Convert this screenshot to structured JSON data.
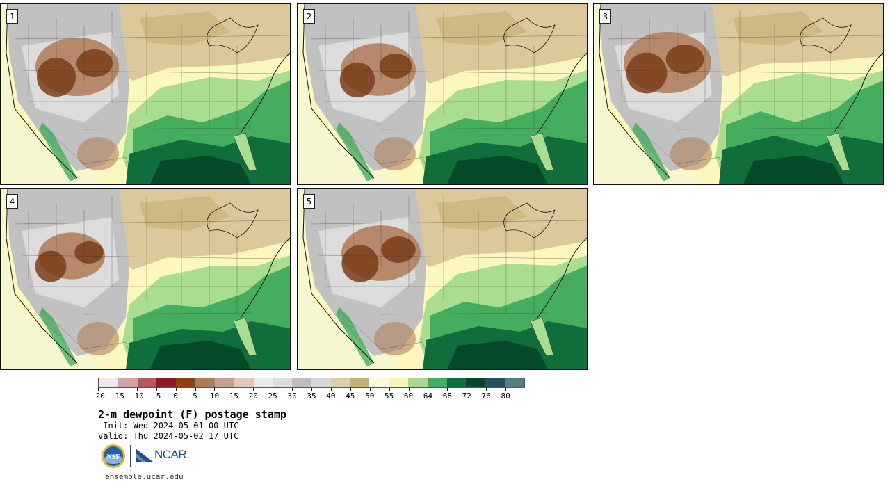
{
  "panels": [
    {
      "label": "1"
    },
    {
      "label": "2"
    },
    {
      "label": "3"
    },
    {
      "label": "4"
    },
    {
      "label": "5"
    }
  ],
  "map_colors": {
    "ocean_far": "#f6f6cf",
    "light_yellow": "#fbf7bf",
    "light_green": "#a9de91",
    "green": "#45ad5e",
    "dark_green": "#0f6e3b",
    "darkest_green": "#044a28",
    "tan": "#dcc99b",
    "dark_tan": "#c8b27a",
    "gray": "#c1c1c1",
    "light_gray": "#e2e2e2",
    "pink_brown": "#b0805c",
    "brown": "#7a3e1a",
    "border": "#3a3a3a"
  },
  "colorbar": {
    "colors": [
      "#f2e6e8",
      "#d6a0a4",
      "#b25a5e",
      "#8b1a22",
      "#8a4312",
      "#b07b58",
      "#c8a08a",
      "#e2c8b8",
      "#ececec",
      "#dcdcdc",
      "#bdbdbd",
      "#d8d8d8",
      "#dccfa6",
      "#c9ae76",
      "#fbfbe0",
      "#f7f6b0",
      "#a7dc8f",
      "#47ad5d",
      "#0e703c",
      "#04472a",
      "#1f5163",
      "#557e83"
    ],
    "tick_labels": [
      "−20",
      "−15",
      "−10",
      "−5",
      "0",
      "5",
      "10",
      "15",
      "20",
      "25",
      "30",
      "35",
      "40",
      "45",
      "50",
      "55",
      "60",
      "64",
      "68",
      "72",
      "76",
      "80"
    ]
  },
  "title": "2-m dewpoint (F) postage stamp",
  "init_line": " Init: Wed 2024-05-01 00 UTC",
  "valid_line": "Valid: Thu 2024-05-02 17 UTC",
  "logos": {
    "nsf_text": "NSF",
    "ncar_text": "NCAR"
  },
  "site": "ensemble.ucar.edu"
}
